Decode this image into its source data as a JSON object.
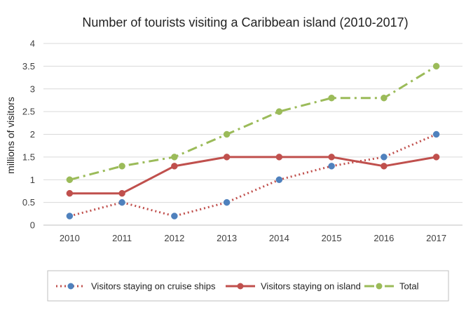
{
  "chart_data": {
    "type": "line",
    "title": "Number of tourists visiting a Caribbean island (2010-2017)",
    "xlabel": "",
    "ylabel": "millions of visitors",
    "categories": [
      "2010",
      "2011",
      "2012",
      "2013",
      "2014",
      "2015",
      "2016",
      "2017"
    ],
    "ylim": [
      0,
      4
    ],
    "yticks": [
      "0",
      "0.5",
      "1",
      "1.5",
      "2",
      "2.5",
      "3",
      "3.5",
      "4"
    ],
    "grid": true,
    "legend": "bottom",
    "series": [
      {
        "name": "Visitors staying on cruise ships",
        "values": [
          0.2,
          0.5,
          0.2,
          0.5,
          1.0,
          1.3,
          1.5,
          2.0
        ],
        "line_color": "#C0504D",
        "marker_color": "#4F81BD",
        "dash": "dotted"
      },
      {
        "name": "Visitors staying on island",
        "values": [
          0.7,
          0.7,
          1.3,
          1.5,
          1.5,
          1.5,
          1.3,
          1.5
        ],
        "line_color": "#C0504D",
        "marker_color": "#C0504D",
        "dash": "solid"
      },
      {
        "name": "Total",
        "values": [
          1.0,
          1.3,
          1.5,
          2.0,
          2.5,
          2.8,
          2.8,
          3.5
        ],
        "line_color": "#9BBB59",
        "marker_color": "#9BBB59",
        "dash": "dash-dot"
      }
    ]
  }
}
